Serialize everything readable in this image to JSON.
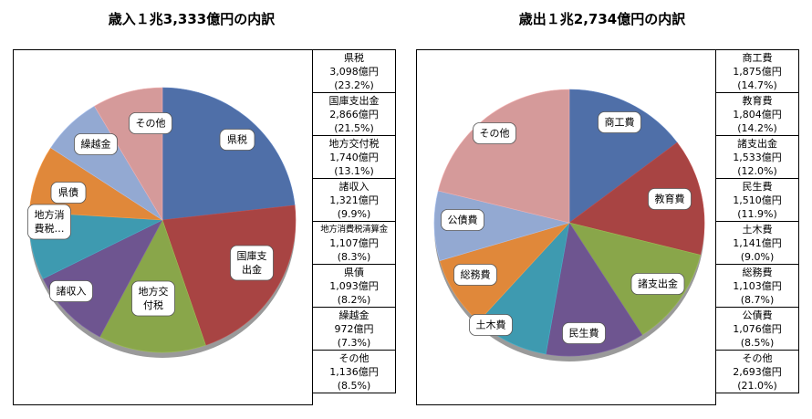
{
  "chart_data": [
    {
      "type": "pie",
      "title": "歳入１兆3,333億円の内訳",
      "unit": "億円",
      "slices": [
        {
          "name": "県税",
          "slice_label": "県税",
          "value": 3098,
          "value_text": "3,098億円",
          "percent_text": "(23.2%)",
          "percent": 23.2,
          "color": "#4F6FA8"
        },
        {
          "name": "国庫支出金",
          "slice_label": "国庫支\n出金",
          "value": 2866,
          "value_text": "2,866億円",
          "percent_text": "(21.5%)",
          "percent": 21.5,
          "color": "#A84443"
        },
        {
          "name": "地方交付税",
          "slice_label": "地方交\n付税",
          "value": 1740,
          "value_text": "1,740億円",
          "percent_text": "(13.1%)",
          "percent": 13.1,
          "color": "#89A64A"
        },
        {
          "name": "諸収入",
          "slice_label": "諸収入",
          "value": 1321,
          "value_text": "1,321億円",
          "percent_text": "(9.9%)",
          "percent": 9.9,
          "color": "#6E5590"
        },
        {
          "name": "地方消費税清算金",
          "slice_label": "地方消\n費税…",
          "value": 1107,
          "value_text": "1,107億円",
          "percent_text": "(8.3%)",
          "percent": 8.3,
          "color": "#3E9AB0"
        },
        {
          "name": "県債",
          "slice_label": "県債",
          "value": 1093,
          "value_text": "1,093億円",
          "percent_text": "(8.2%)",
          "percent": 8.2,
          "color": "#E0883A"
        },
        {
          "name": "繰越金",
          "slice_label": "繰越金",
          "value": 972,
          "value_text": "972億円",
          "percent_text": "(7.3%)",
          "percent": 7.3,
          "color": "#93A9D2"
        },
        {
          "name": "その他",
          "slice_label": "その他",
          "value": 1136,
          "value_text": "1,136億円",
          "percent_text": "(8.5%)",
          "percent": 8.5,
          "color": "#D59A9A"
        }
      ]
    },
    {
      "type": "pie",
      "title": "歳出１兆2,734億円の内訳",
      "unit": "億円",
      "slices": [
        {
          "name": "商工費",
          "slice_label": "商工費",
          "value": 1875,
          "value_text": "1,875億円",
          "percent_text": "(14.7%)",
          "percent": 14.7,
          "color": "#4F6FA8"
        },
        {
          "name": "教育費",
          "slice_label": "教育費",
          "value": 1804,
          "value_text": "1,804億円",
          "percent_text": "(14.2%)",
          "percent": 14.2,
          "color": "#A84443"
        },
        {
          "name": "諸支出金",
          "slice_label": "諸支出金",
          "value": 1533,
          "value_text": "1,533億円",
          "percent_text": "(12.0%)",
          "percent": 12.0,
          "color": "#89A64A"
        },
        {
          "name": "民生費",
          "slice_label": "民生費",
          "value": 1510,
          "value_text": "1,510億円",
          "percent_text": "(11.9%)",
          "percent": 11.9,
          "color": "#6E5590"
        },
        {
          "name": "土木費",
          "slice_label": "土木費",
          "value": 1141,
          "value_text": "1,141億円",
          "percent_text": "(9.0%)",
          "percent": 9.0,
          "color": "#3E9AB0"
        },
        {
          "name": "総務費",
          "slice_label": "総務費",
          "value": 1103,
          "value_text": "1,103億円",
          "percent_text": "(8.7%)",
          "percent": 8.7,
          "color": "#E0883A"
        },
        {
          "name": "公債費",
          "slice_label": "公債費",
          "value": 1076,
          "value_text": "1,076億円",
          "percent_text": "(8.5%)",
          "percent": 8.5,
          "color": "#93A9D2"
        },
        {
          "name": "その他",
          "slice_label": "その他",
          "value": 2693,
          "value_text": "2,693億円",
          "percent_text": "(21.0%)",
          "percent": 21.0,
          "color": "#D59A9A"
        }
      ]
    }
  ]
}
